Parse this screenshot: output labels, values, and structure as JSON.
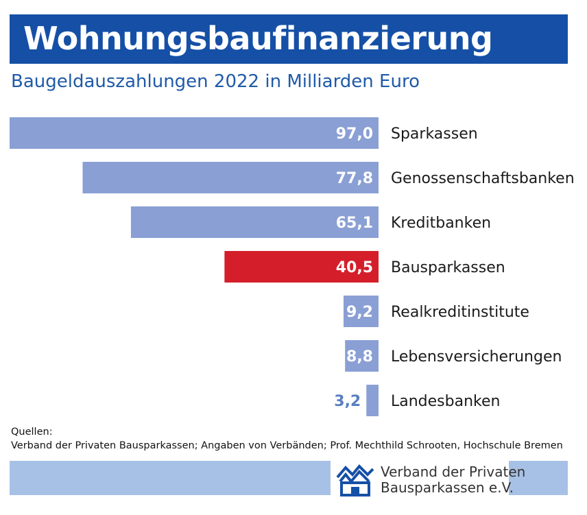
{
  "title": "Wohnungsbaufinanzierung",
  "subtitle": "Baugeldauszahlungen 2022 in Milliarden Euro",
  "chart_data": {
    "type": "bar",
    "orientation": "horizontal",
    "categories": [
      "Sparkassen",
      "Genossenschaftsbanken",
      "Kreditbanken",
      "Bausparkassen",
      "Realkreditinstitute",
      "Lebensversicherungen",
      "Landesbanken"
    ],
    "values": [
      97.0,
      77.8,
      65.1,
      40.5,
      9.2,
      8.8,
      3.2
    ],
    "value_labels": [
      "97,0",
      "77,8",
      "65,1",
      "40,5",
      "9,2",
      "8,8",
      "3,2"
    ],
    "highlight_index": 3,
    "xlim": [
      0,
      97.0
    ],
    "colors": {
      "bar": "#8a9fd4",
      "highlight": "#d41f2a",
      "label_inside": "#ffffff",
      "label_outside": "#5a7fc0"
    }
  },
  "source": {
    "heading": "Quellen:",
    "text": "Verband der Privaten Bausparkassen; Angaben von Verbänden; Prof. Mechthild Schrooten, Hochschule Bremen"
  },
  "logo": {
    "line1": "Verband der Privaten",
    "line2": "Bausparkassen e.V."
  }
}
